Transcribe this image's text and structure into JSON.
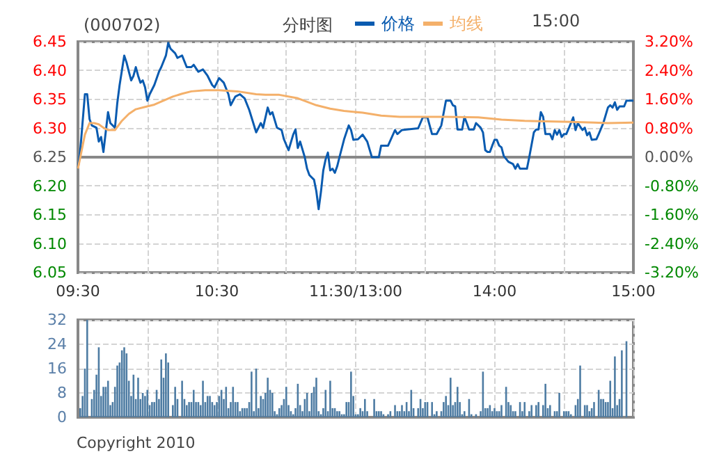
{
  "chart_data": [
    {
      "type": "line",
      "title": "(000702)",
      "subtitle": "分时图",
      "annotations": [
        "15:00"
      ],
      "legend": "top",
      "grid": true,
      "marker": "none",
      "categories": [
        "09:30",
        null,
        null,
        null,
        null,
        null,
        null,
        null,
        null,
        null,
        null,
        null,
        null,
        null,
        null,
        null,
        null,
        null,
        null,
        null,
        null,
        null,
        null,
        null,
        null,
        null,
        null,
        null,
        null,
        null,
        null,
        null,
        null,
        null,
        null,
        null,
        null,
        null,
        null,
        null,
        null,
        null,
        null,
        null,
        null,
        null,
        null,
        null,
        null,
        null,
        null,
        null,
        null,
        null,
        null,
        null,
        null,
        null,
        null,
        null,
        "10:30",
        null,
        null,
        null,
        null,
        null,
        null,
        null,
        null,
        null,
        null,
        null,
        null,
        null,
        null,
        null,
        null,
        null,
        null,
        null,
        null,
        null,
        null,
        null,
        null,
        null,
        null,
        null,
        null,
        null,
        null,
        null,
        null,
        null,
        null,
        null,
        null,
        null,
        null,
        null,
        null,
        null,
        null,
        null,
        null,
        null,
        null,
        null,
        null,
        null,
        null,
        null,
        null,
        null,
        null,
        null,
        null,
        null,
        null,
        null,
        "11:30/13:00",
        null,
        null,
        null,
        null,
        null,
        null,
        null,
        null,
        null,
        null,
        null,
        null,
        null,
        null,
        null,
        null,
        null,
        null,
        null,
        null,
        null,
        null,
        null,
        null,
        null,
        null,
        null,
        null,
        null,
        null,
        null,
        null,
        null,
        null,
        null,
        null,
        null,
        null,
        null,
        null,
        null,
        null,
        null,
        null,
        null,
        null,
        null,
        null,
        null,
        null,
        null,
        null,
        null,
        null,
        null,
        null,
        null,
        null,
        null,
        "14:00",
        null,
        null,
        null,
        null,
        null,
        null,
        null,
        null,
        null,
        null,
        null,
        null,
        null,
        null,
        null,
        null,
        null,
        null,
        null,
        null,
        null,
        null,
        null,
        null,
        null,
        null,
        null,
        null,
        null,
        null,
        null,
        null,
        null,
        null,
        null,
        null,
        null,
        null,
        null,
        null,
        null,
        null,
        null,
        null,
        null,
        null,
        null,
        null,
        null,
        null,
        null,
        null,
        null,
        null,
        null,
        null,
        null,
        null,
        null,
        "15:00"
      ],
      "ylim": [
        6.05,
        6.45
      ],
      "yticks": [
        {
          "value": 6.05,
          "label": "6.05"
        },
        {
          "value": 6.1,
          "label": "6.10"
        },
        {
          "value": 6.15,
          "label": "6.15"
        },
        {
          "value": 6.2,
          "label": "6.20"
        },
        {
          "value": 6.25,
          "label": "6.25"
        },
        {
          "value": 6.3,
          "label": "6.30"
        },
        {
          "value": 6.35,
          "label": "6.35"
        },
        {
          "value": 6.4,
          "label": "6.40"
        },
        {
          "value": 6.45,
          "label": "6.45"
        }
      ],
      "y2lim": [
        -3.2,
        3.2
      ],
      "y2ticks": [
        {
          "value": -3.2,
          "label": "-3.20%"
        },
        {
          "value": -2.4,
          "label": "-2.40%"
        },
        {
          "value": -1.6,
          "label": "-1.60%"
        },
        {
          "value": -0.8,
          "label": "-0.80%"
        },
        {
          "value": 0,
          "label": "0.00%"
        },
        {
          "value": 0.8,
          "label": "0.80%"
        },
        {
          "value": 1.6,
          "label": "1.60%"
        },
        {
          "value": 2.4,
          "label": "2.40%"
        },
        {
          "value": 3.2,
          "label": "3.20%"
        }
      ],
      "series": [
        {
          "name": "价格",
          "color": "#0a5bb0",
          "values": [
            6.23,
            6.262,
            null,
            6.359,
            6.359,
            6.316,
            6.305,
            null,
            6.301,
            6.277,
            6.285,
            6.259,
            null,
            6.328,
            6.309,
            null,
            6.301,
            6.344,
            6.375,
            null,
            6.426,
            6.414,
            6.398,
            6.383,
            6.391,
            6.406,
            6.391,
            6.379,
            6.383,
            6.371,
            6.348,
            6.359,
            null,
            6.375,
            null,
            6.398,
            6.406,
            null,
            6.426,
            6.448,
            6.438,
            null,
            6.43,
            6.422,
            null,
            6.426,
            null,
            6.406,
            null,
            6.406,
            6.41,
            null,
            6.398,
            null,
            6.402,
            null,
            6.391,
            null,
            6.375,
            6.371,
            null,
            6.387,
            null,
            6.379,
            null,
            6.359,
            6.34,
            null,
            6.355,
            null,
            6.359,
            null,
            6.352,
            null,
            6.332,
            null,
            null,
            6.293,
            null,
            6.309,
            6.301,
            null,
            6.336,
            6.324,
            6.328,
            null,
            6.301,
            null,
            6.297,
            6.281,
            null,
            6.262,
            null,
            6.289,
            6.298,
            6.266,
            6.277,
            null,
            6.25,
            6.23,
            6.219,
            null,
            6.211,
            6.191,
            6.16,
            6.19,
            6.227,
            6.246,
            6.258,
            6.227,
            6.23,
            6.223,
            6.234,
            6.25,
            null,
            6.281,
            null,
            6.305,
            6.297,
            6.28,
            null,
            6.281,
            null,
            6.289,
            null,
            6.277,
            null,
            6.25,
            null,
            null,
            6.25,
            6.27,
            null,
            null,
            6.27,
            null,
            null,
            6.297,
            6.29,
            null,
            6.297,
            null,
            6.298,
            null,
            null,
            null,
            null,
            6.3,
            null,
            6.319,
            null,
            6.319,
            null,
            6.29,
            null,
            6.29,
            null,
            6.305,
            null,
            6.348,
            null,
            6.348,
            6.34,
            6.338,
            6.298,
            null,
            6.298,
            6.32,
            6.309,
            6.298,
            null,
            6.298,
            6.309,
            null,
            6.301,
            6.293,
            6.262,
            6.259,
            6.259,
            6.27,
            6.28,
            6.28,
            6.27,
            6.267,
            6.252,
            null,
            6.242,
            null,
            6.238,
            6.23,
            6.238,
            6.23,
            null,
            null,
            6.23,
            6.25,
            null,
            6.293,
            6.298,
            6.298,
            6.328,
            6.32,
            6.29,
            null,
            6.29,
            6.281,
            6.297,
            6.289,
            6.297,
            6.285,
            6.29,
            6.29,
            null,
            6.309,
            6.319,
            6.297,
            6.309,
            null,
            6.297,
            6.301,
            6.288,
            6.293,
            6.28,
            null,
            6.281,
            6.29,
            null,
            6.309,
            null,
            6.336,
            6.34,
            6.336,
            6.345,
            6.332,
            6.338,
            null,
            6.338,
            6.348,
            null,
            null,
            6.348
          ]
        },
        {
          "name": "均线",
          "color": "#f4b06a",
          "values": [
            6.23,
            null,
            null,
            6.289,
            null,
            6.309,
            null,
            6.309,
            null,
            6.307,
            null,
            6.301,
            null,
            6.297,
            null,
            null,
            6.297,
            null,
            null,
            6.313,
            null,
            null,
            6.325,
            null,
            null,
            6.333,
            null,
            null,
            null,
            6.337,
            null,
            null,
            null,
            6.341,
            null,
            null,
            null,
            6.348,
            null,
            null,
            null,
            6.355,
            null,
            null,
            null,
            6.36,
            null,
            null,
            null,
            6.364,
            null,
            null,
            null,
            null,
            null,
            6.366,
            null,
            null,
            null,
            null,
            null,
            6.366,
            null,
            null,
            null,
            null,
            null,
            null,
            null,
            6.364,
            null,
            null,
            null,
            null,
            null,
            null,
            null,
            6.359,
            null,
            null,
            null,
            6.358,
            null,
            null,
            null,
            null,
            null,
            6.358,
            null,
            null,
            null,
            null,
            null,
            null,
            null,
            6.352,
            null,
            null,
            null,
            null,
            null,
            null,
            null,
            6.34,
            null,
            null,
            null,
            null,
            null,
            6.334,
            null,
            null,
            null,
            null,
            null,
            6.33,
            null,
            null,
            null,
            null,
            null,
            null,
            null,
            6.327,
            null,
            null,
            null,
            null,
            null,
            null,
            null,
            6.322,
            null,
            null,
            null,
            null,
            null,
            null,
            null,
            6.32,
            null,
            null,
            null,
            null,
            null,
            null,
            null,
            6.32,
            null,
            null,
            null,
            null,
            null,
            null,
            null,
            null,
            null,
            null,
            null,
            6.32,
            null,
            null,
            null,
            null,
            null,
            null,
            null,
            null,
            null,
            null,
            null,
            null,
            null,
            6.319,
            null,
            null,
            null,
            null,
            null,
            null,
            null,
            null,
            null,
            6.315,
            null,
            null,
            null,
            null,
            null,
            null,
            null,
            null,
            null,
            6.313,
            null,
            null,
            null,
            null,
            null,
            null,
            null,
            null,
            null,
            null,
            null,
            null,
            null,
            null,
            null,
            null,
            null,
            null,
            null,
            6.311,
            null,
            null,
            null,
            null,
            null,
            null,
            null,
            null,
            null,
            6.31,
            null,
            null,
            null,
            null,
            null,
            6.309,
            null,
            null,
            null,
            null,
            null,
            null,
            null,
            null,
            null,
            null,
            6.31
          ]
        }
      ]
    },
    {
      "type": "bar",
      "annotations": [
        "Copyright 2010"
      ],
      "grid": true,
      "tick_labels": "y",
      "categories": [
        null,
        null,
        null,
        null,
        null,
        null,
        null,
        null,
        null,
        null,
        null,
        null,
        null,
        null,
        null,
        null,
        null,
        null,
        null,
        null,
        null,
        null,
        null,
        null,
        null,
        null,
        null,
        null,
        null,
        null,
        null,
        null,
        null,
        null,
        null,
        null,
        null,
        null,
        null,
        null,
        null,
        null,
        null,
        null,
        null,
        null,
        null,
        null,
        null,
        null,
        null,
        null,
        null,
        null,
        null,
        null,
        null,
        null,
        null,
        null,
        null,
        null,
        null,
        null,
        null,
        null,
        null,
        null,
        null,
        null,
        null,
        null,
        null,
        null,
        null,
        null,
        null,
        null,
        null,
        null,
        null,
        null,
        null,
        null,
        null,
        null,
        null,
        null,
        null,
        null,
        null,
        null,
        null,
        null,
        null,
        null,
        null,
        null,
        null,
        null,
        null,
        null,
        null,
        null,
        null,
        null,
        null,
        null,
        null,
        null,
        null,
        null,
        null,
        null,
        null,
        null,
        null,
        null,
        null,
        null,
        null,
        null,
        null,
        null,
        null,
        null,
        null,
        null,
        null,
        null,
        null,
        null,
        null,
        null,
        null,
        null,
        null,
        null,
        null,
        null,
        null,
        null,
        null,
        null,
        null,
        null,
        null,
        null,
        null,
        null,
        null,
        null,
        null,
        null,
        null,
        null,
        null,
        null,
        null,
        null,
        null,
        null,
        null,
        null,
        null,
        null,
        null,
        null,
        null,
        null,
        null,
        null,
        null,
        null,
        null,
        null,
        null,
        null,
        null,
        null,
        null,
        null,
        null,
        null,
        null,
        null,
        null,
        null,
        null,
        null,
        null,
        null,
        null,
        null,
        null,
        null,
        null,
        null,
        null,
        null,
        null,
        null,
        null,
        null,
        null,
        null,
        null,
        null,
        null,
        null,
        null,
        null,
        null,
        null,
        null,
        null,
        null,
        null,
        null,
        null,
        null,
        null,
        null,
        null,
        null,
        null,
        null,
        null,
        null,
        null,
        null,
        null,
        null,
        null,
        null,
        null,
        null,
        null,
        null,
        null,
        null
      ],
      "ylim": [
        0,
        32
      ],
      "yticks": [
        0,
        8,
        16,
        24,
        32
      ],
      "series": [
        {
          "color": "#4e7ca3",
          "values": [
            null,
            3,
            7,
            16,
            32,
            null,
            6,
            9,
            14,
            23,
            7,
            10,
            10,
            12,
            4,
            5,
            10,
            17,
            18,
            22,
            23,
            21,
            12,
            7,
            14,
            6,
            13,
            6,
            8,
            7,
            9,
            4,
            5,
            5,
            9,
            6,
            19,
            13,
            21,
            18,
            null,
            4,
            10,
            6,
            null,
            12,
            6,
            4,
            5,
            5,
            9,
            5,
            5,
            4,
            12,
            5,
            7,
            7,
            5,
            4,
            5,
            7,
            9,
            6,
            10,
            3,
            5,
            10,
            5,
            5,
            2,
            3,
            3,
            3,
            5,
            15,
            2,
            16,
            3,
            7,
            6,
            8,
            13,
            9,
            8,
            2,
            1,
            3,
            4,
            6,
            10,
            4,
            2,
            1,
            3,
            11,
            4,
            2,
            6,
            8,
            2,
            8,
            10,
            13,
            2,
            1,
            3,
            9,
            2,
            12,
            3,
            3,
            2,
            2,
            1,
            1,
            5,
            5,
            15,
            7,
            1,
            1,
            3,
            2,
            6,
            2,
            null,
            null,
            6,
            2,
            2,
            2,
            1,
            null,
            1,
            2,
            null,
            4,
            2,
            2,
            4,
            2,
            5,
            2,
            9,
            3,
            null,
            3,
            6,
            3,
            5,
            5,
            null,
            5,
            1,
            2,
            null,
            2,
            5,
            7,
            4,
            13,
            4,
            5,
            10,
            5,
            1,
            2,
            null,
            6,
            1,
            null,
            1,
            null,
            2,
            15,
            3,
            3,
            4,
            2,
            3,
            2,
            2,
            4,
            null,
            10,
            5,
            4,
            2,
            2,
            null,
            5,
            2,
            5,
            null,
            2,
            4,
            null,
            4,
            5,
            null,
            4,
            11,
            3,
            4,
            null,
            2,
            2,
            8,
            null,
            2,
            2,
            2,
            1,
            null,
            4,
            6,
            17,
            null,
            4,
            4,
            2,
            3,
            5,
            null,
            9,
            6,
            6,
            5,
            5,
            12,
            3,
            20,
            4,
            6,
            22,
            null,
            25,
            null,
            null,
            null
          ]
        }
      ]
    }
  ]
}
